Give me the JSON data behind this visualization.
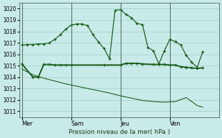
{
  "bg_color": "#c8eae8",
  "grid_color": "#9ecfca",
  "line_color": "#1a5c1a",
  "title": "Pression niveau de la mer( hPa )",
  "ylim": [
    1010.5,
    1020.5
  ],
  "yticks": [
    1011,
    1012,
    1013,
    1014,
    1015,
    1016,
    1017,
    1018,
    1019,
    1020
  ],
  "xtick_labels": [
    "Mer",
    "Sam",
    "Jeu",
    "Ven"
  ],
  "xtick_positions": [
    0,
    36,
    72,
    108
  ],
  "vline_positions": [
    0,
    36,
    72,
    108
  ],
  "xlim": [
    -2,
    144
  ],
  "line1_x": [
    0,
    4,
    8,
    12,
    16,
    20,
    24,
    28,
    32,
    36,
    40,
    44,
    48,
    52,
    56,
    60,
    64,
    68,
    72,
    76,
    80,
    84,
    88,
    92,
    96,
    100,
    104,
    108,
    112,
    116,
    120,
    124,
    128,
    132
  ],
  "line1_y": [
    1016.8,
    1016.85,
    1016.85,
    1016.9,
    1016.9,
    1017.0,
    1017.3,
    1017.7,
    1018.2,
    1018.55,
    1018.65,
    1018.65,
    1018.5,
    1017.7,
    1017.05,
    1016.5,
    1015.6,
    1019.85,
    1019.9,
    1019.5,
    1019.2,
    1018.7,
    1018.6,
    1016.6,
    1016.3,
    1015.15,
    1016.3,
    1017.3,
    1017.1,
    1016.8,
    1015.9,
    1015.3,
    1014.85,
    1016.2
  ],
  "line2_x": [
    0,
    8,
    12,
    16,
    20,
    24,
    28,
    32,
    36,
    60,
    72,
    76,
    80,
    84,
    88,
    96,
    100,
    104,
    108,
    112,
    116,
    120,
    124,
    128,
    132
  ],
  "line2_y": [
    1015.15,
    1014.0,
    1014.0,
    1015.1,
    1015.1,
    1015.05,
    1015.05,
    1015.05,
    1015.05,
    1015.05,
    1015.05,
    1015.2,
    1015.2,
    1015.2,
    1015.15,
    1015.1,
    1015.1,
    1015.1,
    1015.05,
    1015.05,
    1014.9,
    1014.85,
    1014.8,
    1014.75,
    1014.8
  ],
  "line3_x": [
    0,
    8,
    16,
    24,
    32,
    40,
    48,
    56,
    64,
    72,
    80,
    88,
    96,
    104,
    112,
    120,
    128,
    132
  ],
  "line3_y": [
    1014.7,
    1014.2,
    1013.9,
    1013.65,
    1013.4,
    1013.2,
    1013.0,
    1012.8,
    1012.6,
    1012.35,
    1012.15,
    1011.95,
    1011.85,
    1011.8,
    1011.85,
    1012.2,
    1011.5,
    1011.35
  ]
}
